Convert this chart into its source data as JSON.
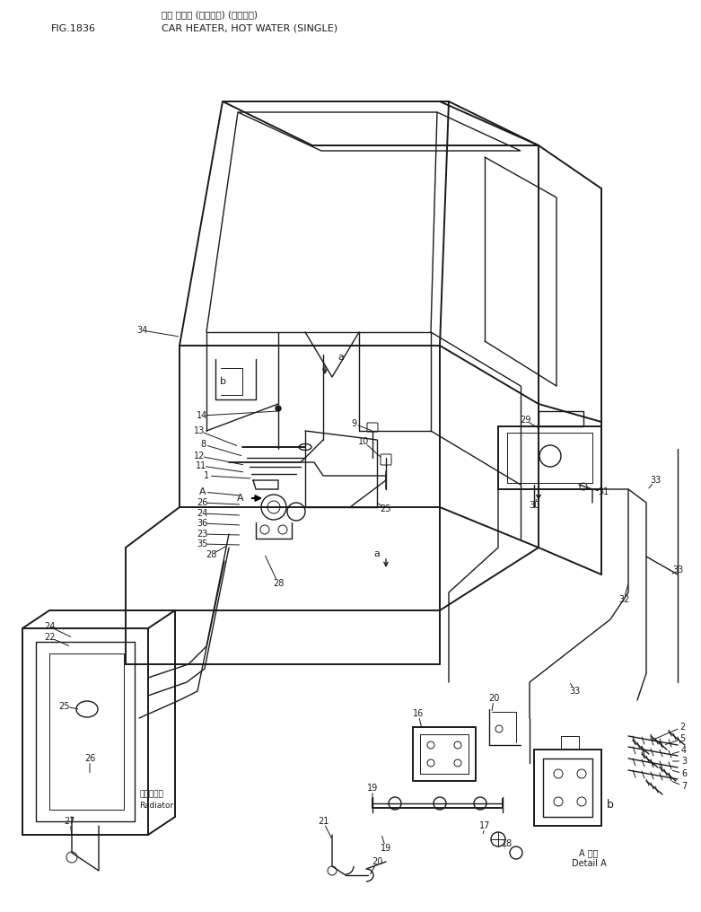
{
  "title_jp": "カー ヒータ (オンスイ) (シングル)",
  "title_en": "CAR HEATER, HOT WATER (SINGLE)",
  "fig_label": "FIG.1836",
  "bg_color": "#ffffff",
  "line_color": "#1a1a1a",
  "label_color": "#1a1a1a",
  "radiator_label_jp": "ラジエータ",
  "radiator_label_en": "Radiator",
  "detail_label_jp": "A 詳細",
  "detail_label_en": "Detail A"
}
